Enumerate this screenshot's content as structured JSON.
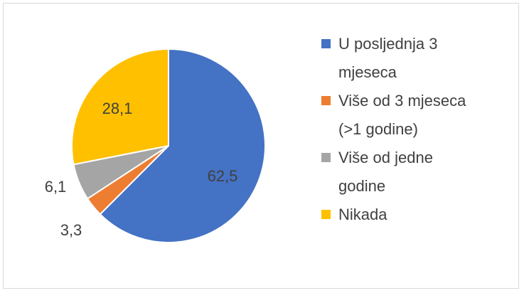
{
  "chart_data": {
    "type": "pie",
    "categories": [
      "U posljednja 3 mjeseca",
      "Više od 3 mjeseca (>1 godine)",
      "Više od jedne godine",
      "Nikada"
    ],
    "values": [
      62.5,
      3.3,
      6.1,
      28.1
    ],
    "value_labels": [
      "62,5",
      "3,3",
      "6,1",
      "28,1"
    ],
    "colors": [
      "#4472C4",
      "#ED7D31",
      "#A5A5A5",
      "#FFC000"
    ],
    "legend_placement": "right",
    "start_angle_deg": 0,
    "direction": "clockwise"
  },
  "legend": {
    "items": [
      {
        "line1": "U posljednja 3",
        "line2": "mjeseca",
        "color": "#4472C4"
      },
      {
        "line1": "Više od 3 mjeseca",
        "line2": "(>1 godine)",
        "color": "#ED7D31"
      },
      {
        "line1": "Više od jedne",
        "line2": "godine",
        "color": "#A5A5A5"
      },
      {
        "line1": "Nikada",
        "line2": "",
        "color": "#FFC000"
      }
    ]
  }
}
